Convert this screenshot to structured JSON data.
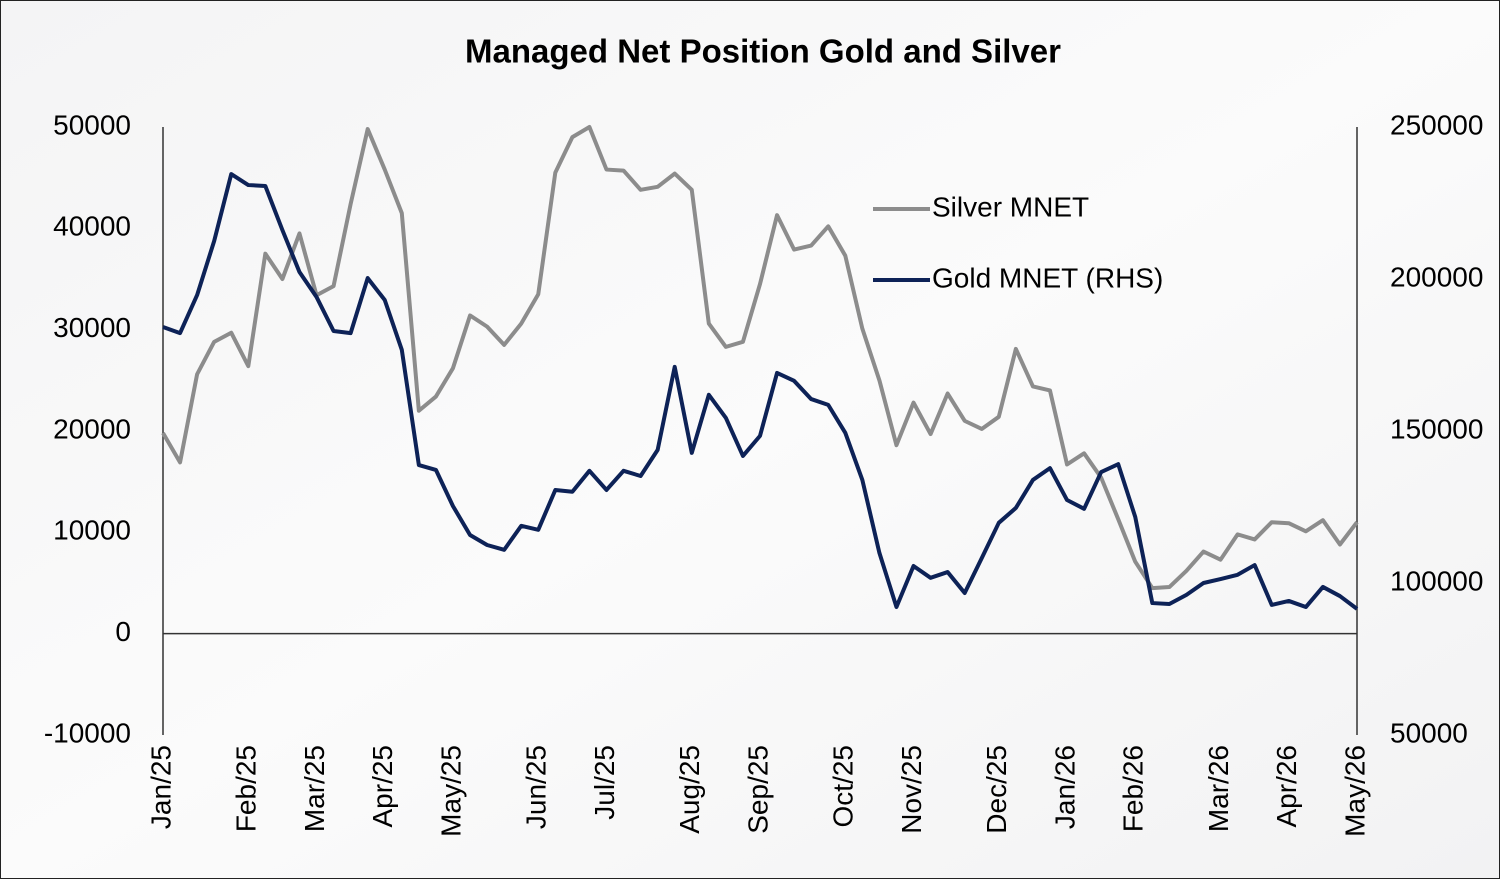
{
  "chart_data": {
    "type": "line",
    "title": "Managed Net Position Gold and Silver",
    "categories": [
      "Jan/25",
      null,
      null,
      null,
      null,
      "Feb/25",
      null,
      null,
      null,
      "Mar/25",
      null,
      null,
      null,
      "Apr/25",
      null,
      null,
      null,
      "May/25",
      null,
      null,
      null,
      null,
      "Jun/25",
      null,
      null,
      null,
      "Jul/25",
      null,
      null,
      null,
      null,
      "Aug/25",
      null,
      null,
      null,
      "Sep/25",
      null,
      null,
      null,
      null,
      "Oct/25",
      null,
      null,
      null,
      "Nov/25",
      null,
      null,
      null,
      null,
      "Dec/25",
      null,
      null,
      null,
      "Jan/26",
      null,
      null,
      null,
      "Feb/26",
      null,
      null,
      null,
      null,
      "Mar/26",
      null,
      null,
      null,
      "Apr/26",
      null,
      null,
      null,
      "May/26"
    ],
    "series": [
      {
        "name": "Silver MNET",
        "color": "#8c8c8c",
        "axis": "y",
        "values": [
          19800,
          16900,
          25600,
          28800,
          29700,
          26400,
          37500,
          35000,
          39500,
          33400,
          34300,
          42400,
          49800,
          45800,
          41500,
          22000,
          23400,
          26200,
          31400,
          30300,
          28500,
          30600,
          33500,
          45500,
          49000,
          50000,
          45800,
          45700,
          43800,
          44100,
          45400,
          43800,
          30600,
          28300,
          28800,
          34500,
          41300,
          37900,
          38300,
          40200,
          37300,
          30100,
          25000,
          18600,
          22800,
          19700,
          23700,
          21000,
          20200,
          21400,
          28100,
          24400,
          24000,
          16700,
          17800,
          15400,
          11300,
          7100,
          4500,
          4600,
          6200,
          8100,
          7300,
          9800,
          9300,
          11000,
          10900,
          10100,
          11200,
          8800,
          11000
        ]
      },
      {
        "name": "Gold MNET (RHS)",
        "color": "#0d2257",
        "axis": "y2",
        "values": [
          184200,
          182200,
          194700,
          212500,
          234500,
          230900,
          230600,
          216100,
          202300,
          194100,
          182900,
          182200,
          200300,
          193100,
          176700,
          138800,
          137200,
          125300,
          115800,
          112500,
          110900,
          118800,
          117500,
          130600,
          130000,
          136900,
          130600,
          136900,
          135200,
          143800,
          171100,
          142800,
          161900,
          154300,
          141800,
          148400,
          169100,
          166500,
          160500,
          158600,
          149400,
          133900,
          109900,
          92100,
          105600,
          101700,
          103600,
          96700,
          108200,
          119800,
          124700,
          133900,
          137800,
          127300,
          124400,
          136500,
          139100,
          121700,
          93400,
          93100,
          96100,
          100000,
          101300,
          102700,
          105900,
          92800,
          94100,
          92100,
          98700,
          95700,
          91500
        ]
      }
    ],
    "ylim": [
      -10000,
      50000
    ],
    "yticks": [
      -10000,
      0,
      10000,
      20000,
      30000,
      40000,
      50000
    ],
    "y2lim": [
      50000,
      250000
    ],
    "y2ticks": [
      50000,
      100000,
      150000,
      200000,
      250000
    ]
  }
}
